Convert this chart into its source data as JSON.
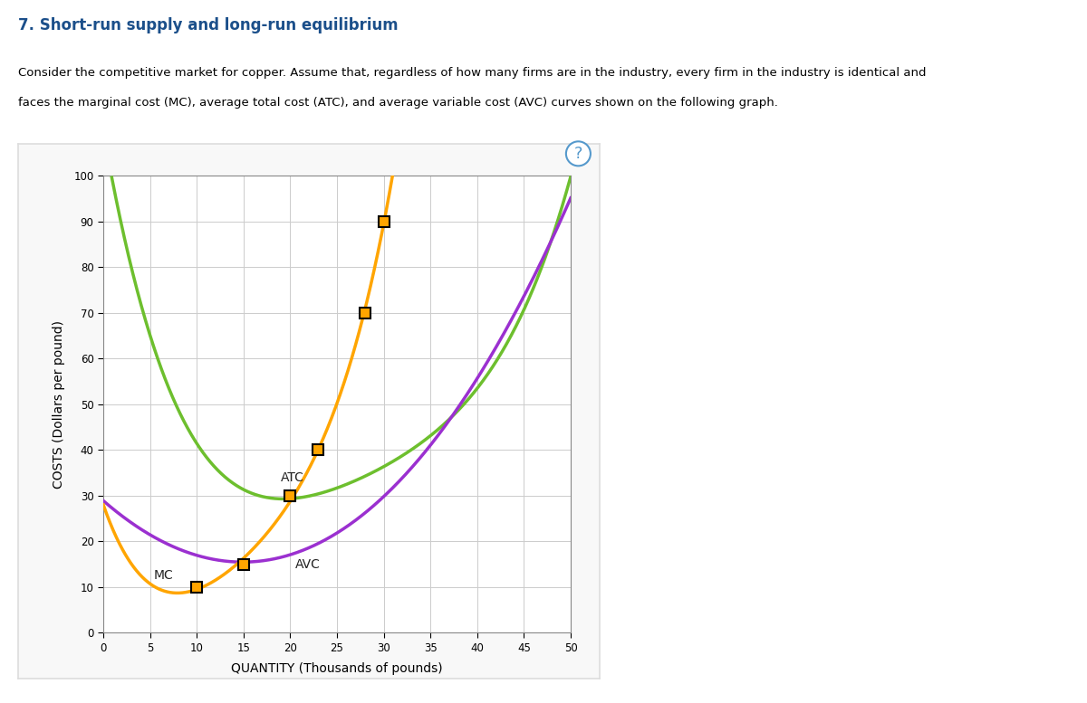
{
  "title": "7. Short-run supply and long-run equilibrium",
  "description_line1": "Consider the competitive market for copper. Assume that, regardless of how many firms are in the industry, every firm in the industry is identical and",
  "description_line2": "faces the marginal cost (MC), average total cost (ATC), and average variable cost (AVC) curves shown on the following graph.",
  "xlabel": "QUANTITY (Thousands of pounds)",
  "ylabel": "COSTS (Dollars per pound)",
  "xlim": [
    0,
    50
  ],
  "ylim": [
    0,
    100
  ],
  "xticks": [
    0,
    5,
    10,
    15,
    20,
    25,
    30,
    35,
    40,
    45,
    50
  ],
  "yticks": [
    0,
    10,
    20,
    30,
    40,
    50,
    60,
    70,
    80,
    90,
    100
  ],
  "mc_color": "#FFA500",
  "avc_color": "#9B30D0",
  "atc_color": "#6DBF2E",
  "mc_label": "MC",
  "avc_label": "AVC",
  "atc_label": "ATC",
  "mc_marker_points": [
    [
      10,
      10
    ],
    [
      15,
      15
    ],
    [
      20,
      30
    ],
    [
      23,
      40
    ],
    [
      28,
      70
    ],
    [
      30,
      90
    ]
  ],
  "background_color": "#FFFFFF",
  "plot_bg_color": "#FFFFFF",
  "grid_color": "#CCCCCC",
  "header_bar_color": "#C8B89A",
  "title_color": "#1B4F8A",
  "text_color": "#000000",
  "panel_border_color": "#DDDDDD",
  "question_color": "#5599CC",
  "mc_pts_q": [
    0,
    10,
    15,
    20,
    23,
    28,
    30
  ],
  "mc_pts_v": [
    28,
    10,
    15,
    30,
    40,
    70,
    90
  ],
  "avc_pts_q": [
    0,
    15,
    25,
    35,
    45,
    50
  ],
  "avc_pts_v": [
    29,
    15,
    22,
    42,
    72,
    96
  ],
  "atc_pts_q": [
    1,
    4,
    8,
    12,
    17,
    20,
    25,
    30,
    38,
    47,
    50
  ],
  "atc_pts_v": [
    99,
    72,
    48,
    36,
    31,
    30,
    31,
    35,
    50,
    80,
    100
  ]
}
